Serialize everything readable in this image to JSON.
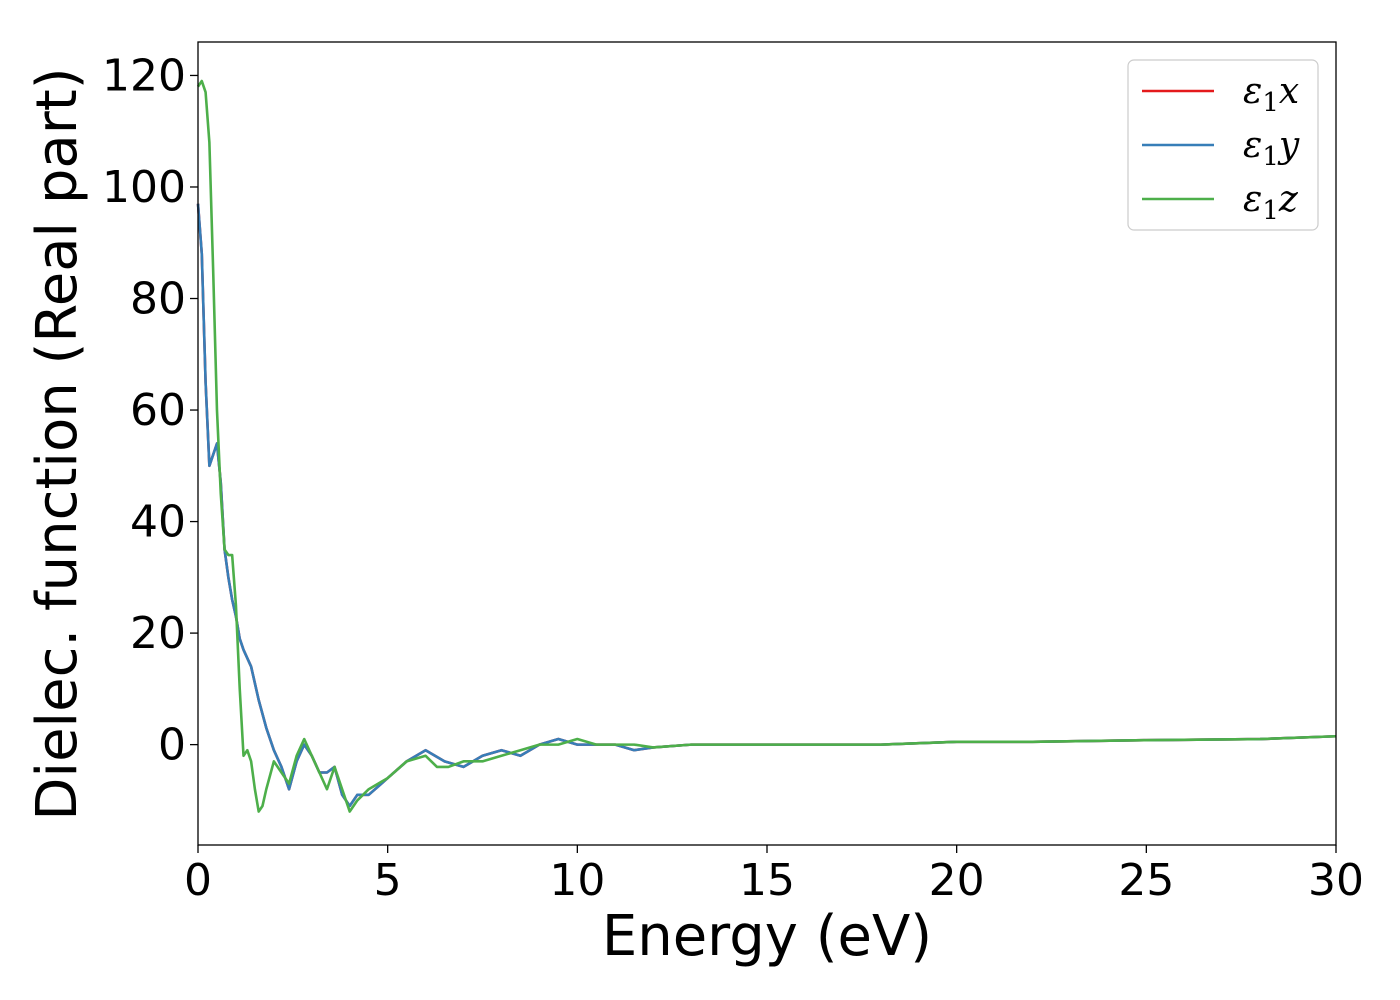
{
  "chart_data": {
    "type": "line",
    "title": "",
    "xlabel": "Energy (eV)",
    "ylabel": "Dielec. function (Real part)",
    "xlim": [
      0,
      30
    ],
    "ylim": [
      -18,
      126
    ],
    "x_ticks": [
      "0",
      "5",
      "10",
      "15",
      "20",
      "25",
      "30"
    ],
    "y_ticks": [
      "0",
      "20",
      "40",
      "60",
      "80",
      "100",
      "120"
    ],
    "grid": false,
    "legend_position": "top-right",
    "series": [
      {
        "name": "ε1x",
        "label_main": "ε",
        "label_sub": "1",
        "label_suffix": "x",
        "color": "#e41a1c",
        "x": [
          0,
          0.1,
          0.2,
          0.3,
          0.4,
          0.5,
          0.6,
          0.7,
          0.8,
          0.9,
          1.0,
          1.1,
          1.2,
          1.4,
          1.6,
          1.8,
          2.0,
          2.2,
          2.4,
          2.6,
          2.8,
          3.0,
          3.2,
          3.4,
          3.6,
          3.8,
          4.0,
          4.2,
          4.5,
          5.0,
          5.5,
          6.0,
          6.5,
          7.0,
          7.5,
          8.0,
          8.5,
          9.0,
          9.5,
          10.0,
          10.5,
          11.0,
          11.5,
          12.0,
          13.0,
          14.0,
          15.0,
          16.0,
          17.0,
          18.0,
          20.0,
          22.0,
          25.0,
          28.0,
          30.0
        ],
        "y": [
          97,
          88,
          65,
          50,
          52,
          54,
          47,
          35,
          30,
          26,
          23,
          19,
          17,
          14,
          8,
          3,
          -1,
          -4,
          -8,
          -3,
          0,
          -2,
          -5,
          -5,
          -4,
          -9,
          -11,
          -9,
          -9,
          -6,
          -3,
          -1,
          -3,
          -4,
          -2,
          -1,
          -2,
          0,
          1,
          0,
          0,
          0,
          -1,
          -0.5,
          0,
          0,
          0,
          0,
          0,
          0,
          0.5,
          0.5,
          0.8,
          1.0,
          1.5
        ]
      },
      {
        "name": "ε1y",
        "label_main": "ε",
        "label_sub": "1",
        "label_suffix": "y",
        "color": "#377eb8",
        "x": [
          0,
          0.1,
          0.2,
          0.3,
          0.4,
          0.5,
          0.6,
          0.7,
          0.8,
          0.9,
          1.0,
          1.1,
          1.2,
          1.4,
          1.6,
          1.8,
          2.0,
          2.2,
          2.4,
          2.6,
          2.8,
          3.0,
          3.2,
          3.4,
          3.6,
          3.8,
          4.0,
          4.2,
          4.5,
          5.0,
          5.5,
          6.0,
          6.5,
          7.0,
          7.5,
          8.0,
          8.5,
          9.0,
          9.5,
          10.0,
          10.5,
          11.0,
          11.5,
          12.0,
          13.0,
          14.0,
          15.0,
          16.0,
          17.0,
          18.0,
          20.0,
          22.0,
          25.0,
          28.0,
          30.0
        ],
        "y": [
          97,
          88,
          65,
          50,
          52,
          54,
          47,
          35,
          30,
          26,
          23,
          19,
          17,
          14,
          8,
          3,
          -1,
          -4,
          -8,
          -3,
          0,
          -2,
          -5,
          -5,
          -4,
          -9,
          -11,
          -9,
          -9,
          -6,
          -3,
          -1,
          -3,
          -4,
          -2,
          -1,
          -2,
          0,
          1,
          0,
          0,
          0,
          -1,
          -0.5,
          0,
          0,
          0,
          0,
          0,
          0,
          0.5,
          0.5,
          0.8,
          1.0,
          1.5
        ]
      },
      {
        "name": "ε1z",
        "label_main": "ε",
        "label_sub": "1",
        "label_suffix": "z",
        "color": "#4daf4a",
        "x": [
          0,
          0.1,
          0.2,
          0.3,
          0.4,
          0.5,
          0.6,
          0.7,
          0.8,
          0.9,
          1.0,
          1.1,
          1.2,
          1.3,
          1.4,
          1.5,
          1.6,
          1.7,
          1.8,
          2.0,
          2.2,
          2.4,
          2.6,
          2.8,
          3.0,
          3.2,
          3.4,
          3.6,
          3.8,
          4.0,
          4.2,
          4.5,
          5.0,
          5.5,
          6.0,
          6.3,
          6.6,
          7.0,
          7.5,
          8.0,
          8.5,
          9.0,
          9.5,
          10.0,
          10.5,
          11.0,
          11.5,
          12.0,
          13.0,
          14.0,
          15.0,
          16.0,
          17.0,
          18.0,
          20.0,
          22.0,
          25.0,
          28.0,
          30.0
        ],
        "y": [
          118,
          119,
          117,
          108,
          85,
          60,
          45,
          35,
          34,
          34,
          25,
          10,
          -2,
          -1,
          -3,
          -8,
          -12,
          -11,
          -8,
          -3,
          -5,
          -7,
          -2,
          1,
          -2,
          -5,
          -8,
          -4,
          -8,
          -12,
          -10,
          -8,
          -6,
          -3,
          -2,
          -4,
          -4,
          -3,
          -3,
          -2,
          -1,
          0,
          0,
          1,
          0,
          0,
          0,
          -0.5,
          0,
          0,
          0,
          0,
          0,
          0,
          0.5,
          0.5,
          0.8,
          1.0,
          1.5
        ]
      }
    ]
  }
}
